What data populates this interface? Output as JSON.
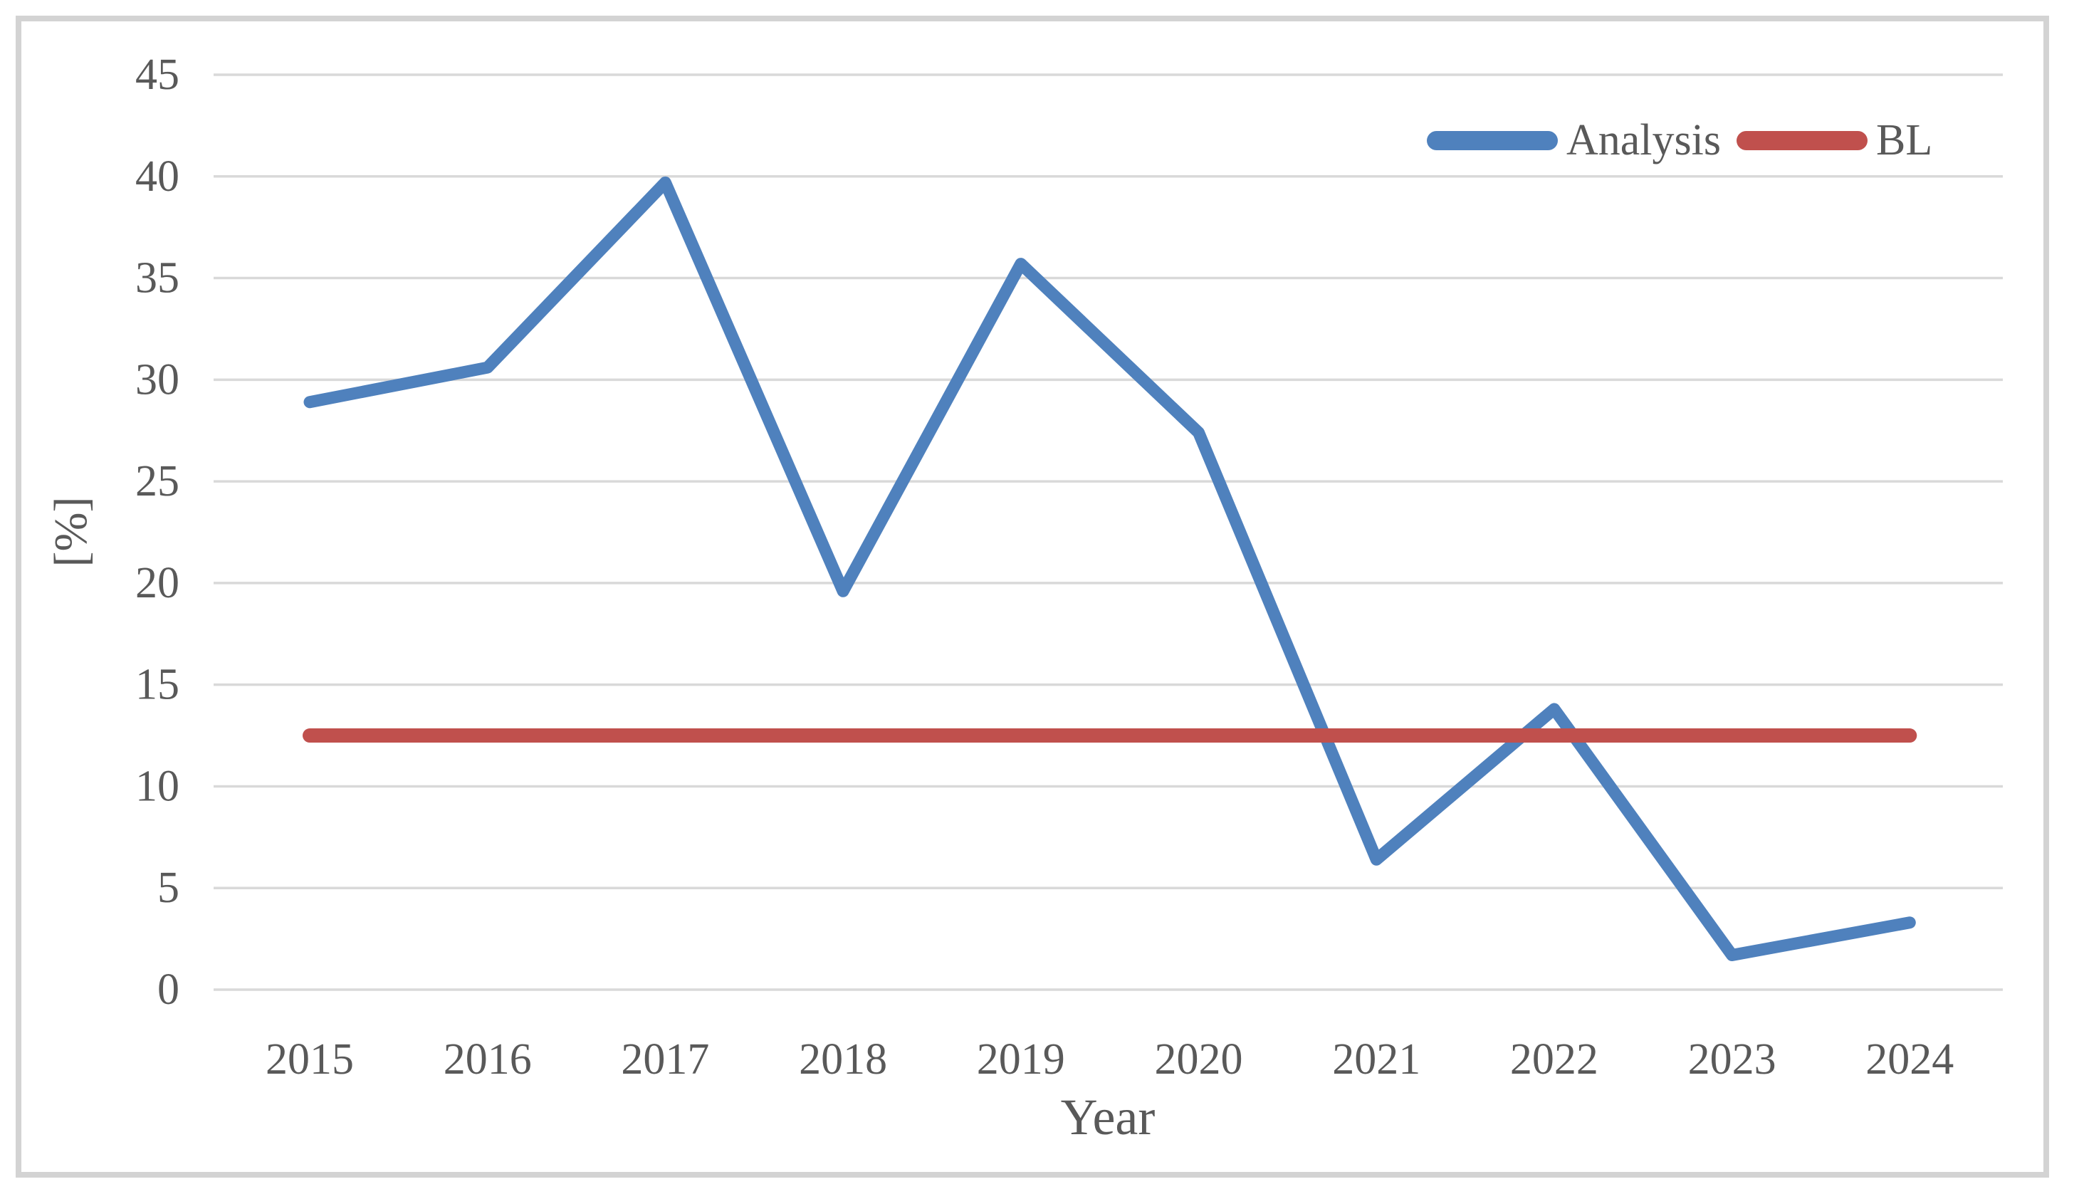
{
  "figure": {
    "background": "#ffffff",
    "border_color": "#d3d3d3"
  },
  "chart_data": {
    "type": "line",
    "title": "",
    "xlabel": "Year",
    "ylabel": "[%]",
    "categories": [
      "2015",
      "2016",
      "2017",
      "2018",
      "2019",
      "2020",
      "2021",
      "2022",
      "2023",
      "2024"
    ],
    "yticks": [
      0,
      5,
      10,
      15,
      20,
      25,
      30,
      35,
      40,
      45
    ],
    "ylim": [
      0,
      45
    ],
    "grid": true,
    "grid_color": "#d9d9d9",
    "text_color": "#595959",
    "legend_position": "top-right",
    "series": [
      {
        "name": "Analysis",
        "color": "#4f81bd",
        "values": [
          28.9,
          30.6,
          39.7,
          19.6,
          35.7,
          27.4,
          6.4,
          13.8,
          1.7,
          3.3
        ]
      },
      {
        "name": "BL",
        "color": "#c0504d",
        "values": [
          12.5,
          12.5,
          12.5,
          12.5,
          12.5,
          12.5,
          12.5,
          12.5,
          12.5,
          12.5
        ]
      }
    ]
  }
}
